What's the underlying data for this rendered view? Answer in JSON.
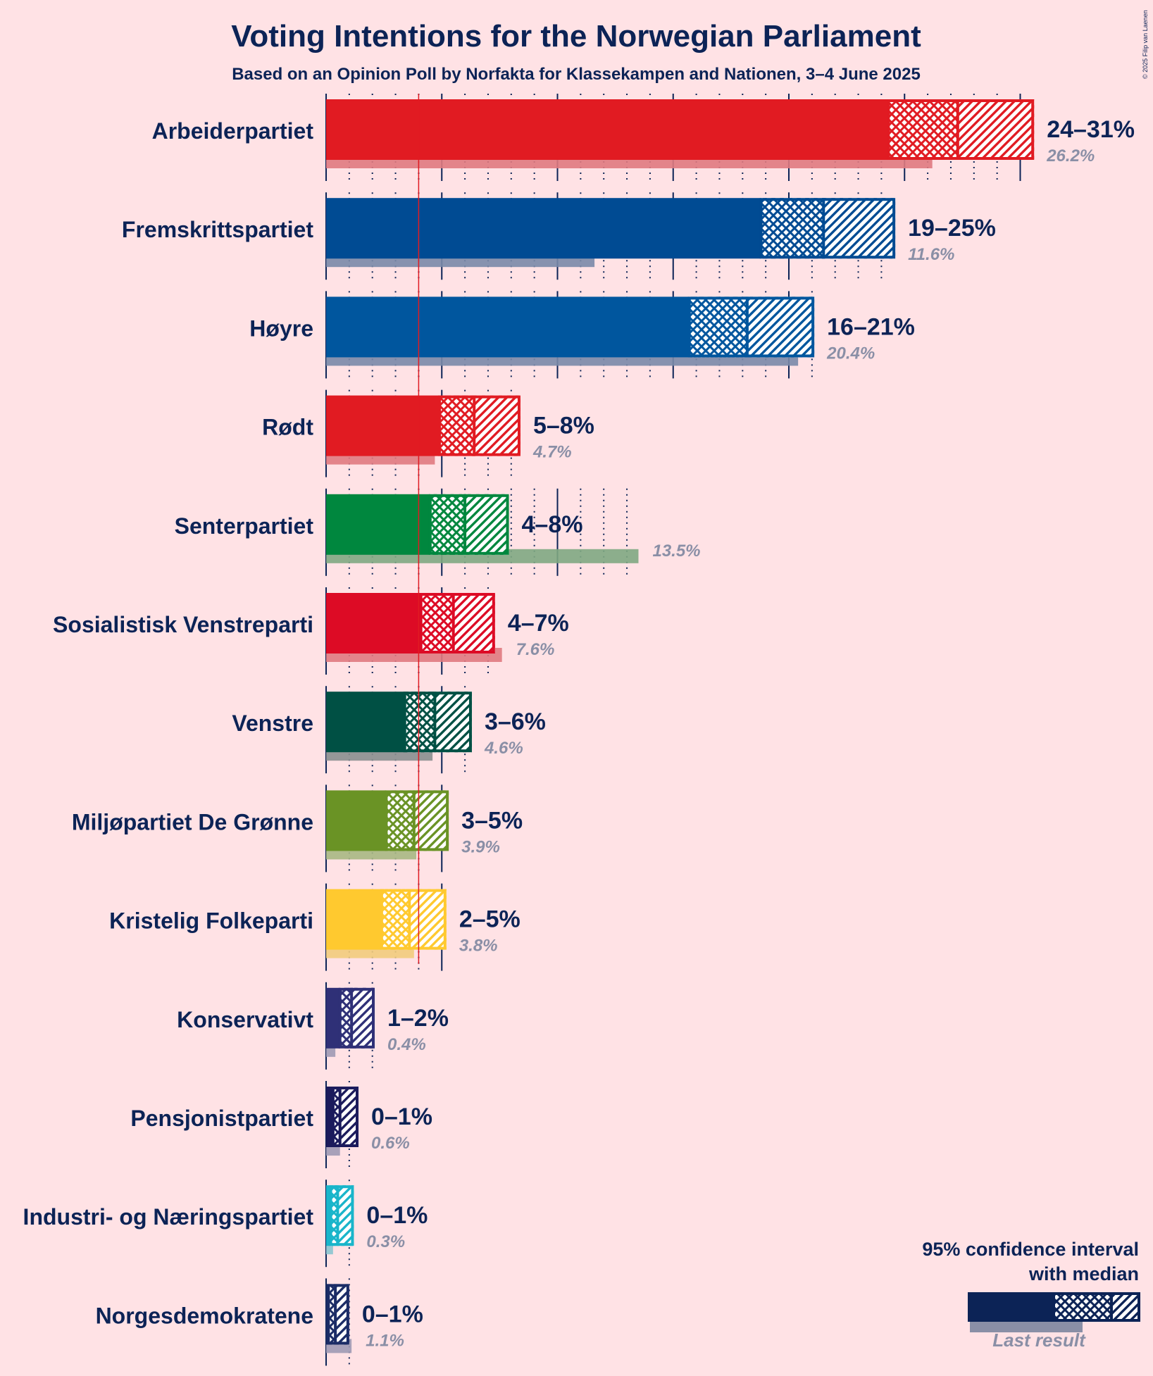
{
  "chart_data": {
    "type": "bar",
    "title": "Voting Intentions for the Norwegian Parliament",
    "subtitle": "Based on an Opinion Poll by Norfakta for Klassekampen and Nationen, 3–4 June 2025",
    "copyright": "© 2025 Filip van Laenen",
    "threshold": 4,
    "xlim": [
      0,
      31
    ],
    "parties": [
      {
        "name": "Arbeiderpartiet",
        "label": "24–31%",
        "low": 24.3,
        "median": 27.3,
        "high": 30.6,
        "last": 26.2,
        "last_label": "26.2%",
        "color": "#E11B22",
        "last_color": "#E07A80"
      },
      {
        "name": "Fremskrittspartiet",
        "label": "19–25%",
        "low": 18.8,
        "median": 21.5,
        "high": 24.6,
        "last": 11.6,
        "last_label": "11.6%",
        "color": "#004B93",
        "last_color": "#7A8AA8"
      },
      {
        "name": "Høyre",
        "label": "16–21%",
        "low": 15.7,
        "median": 18.2,
        "high": 21.1,
        "last": 20.4,
        "last_label": "20.4%",
        "color": "#00569E",
        "last_color": "#7A8AA8"
      },
      {
        "name": "Rødt",
        "label": "5–8%",
        "low": 4.9,
        "median": 6.4,
        "high": 8.4,
        "last": 4.7,
        "last_label": "4.7%",
        "color": "#E11B22",
        "last_color": "#E07A80"
      },
      {
        "name": "Senterpartiet",
        "label": "4–8%",
        "low": 4.5,
        "median": 6.0,
        "high": 7.9,
        "last": 13.5,
        "last_label": "13.5%",
        "color": "#00873E",
        "last_color": "#7FA882"
      },
      {
        "name": "Sosialistisk Venstreparti",
        "label": "4–7%",
        "low": 4.1,
        "median": 5.5,
        "high": 7.3,
        "last": 7.6,
        "last_label": "7.6%",
        "color": "#DD0B25",
        "last_color": "#E07A80"
      },
      {
        "name": "Venstre",
        "label": "3–6%",
        "low": 3.4,
        "median": 4.7,
        "high": 6.3,
        "last": 4.6,
        "last_label": "4.6%",
        "color": "#005044",
        "last_color": "#8A8F8F"
      },
      {
        "name": "Miljøpartiet De Grønne",
        "label": "3–5%",
        "low": 2.6,
        "median": 3.8,
        "high": 5.3,
        "last": 3.9,
        "last_label": "3.9%",
        "color": "#6A9325",
        "last_color": "#A8B883"
      },
      {
        "name": "Kristelig Folkeparti",
        "label": "2–5%",
        "low": 2.4,
        "median": 3.6,
        "high": 5.2,
        "last": 3.8,
        "last_label": "3.8%",
        "color": "#FFC92F",
        "last_color": "#F2CC7C"
      },
      {
        "name": "Konservativt",
        "label": "1–2%",
        "low": 0.6,
        "median": 1.1,
        "high": 2.1,
        "last": 0.4,
        "last_label": "0.4%",
        "color": "#2F3077",
        "last_color": "#9E9AB4"
      },
      {
        "name": "Pensjonistpartiet",
        "label": "0–1%",
        "low": 0.3,
        "median": 0.6,
        "high": 1.4,
        "last": 0.6,
        "last_label": "0.6%",
        "color": "#1B1B5C",
        "last_color": "#9E9AB4"
      },
      {
        "name": "Industri- og Næringspartiet",
        "label": "0–1%",
        "low": 0.2,
        "median": 0.5,
        "high": 1.2,
        "last": 0.3,
        "last_label": "0.3%",
        "color": "#19B5CA",
        "last_color": "#8BC5CF"
      },
      {
        "name": "Norgesdemokratene",
        "label": "0–1%",
        "low": 0.1,
        "median": 0.4,
        "high": 1.0,
        "last": 1.1,
        "last_label": "1.1%",
        "color": "#1B2C66",
        "last_color": "#9E9AB4"
      }
    ],
    "legend": {
      "line1": "95% confidence interval",
      "line2": "with median",
      "last_result": "Last result",
      "color": "#0C2356",
      "last_color": "#8A8FA6"
    }
  }
}
